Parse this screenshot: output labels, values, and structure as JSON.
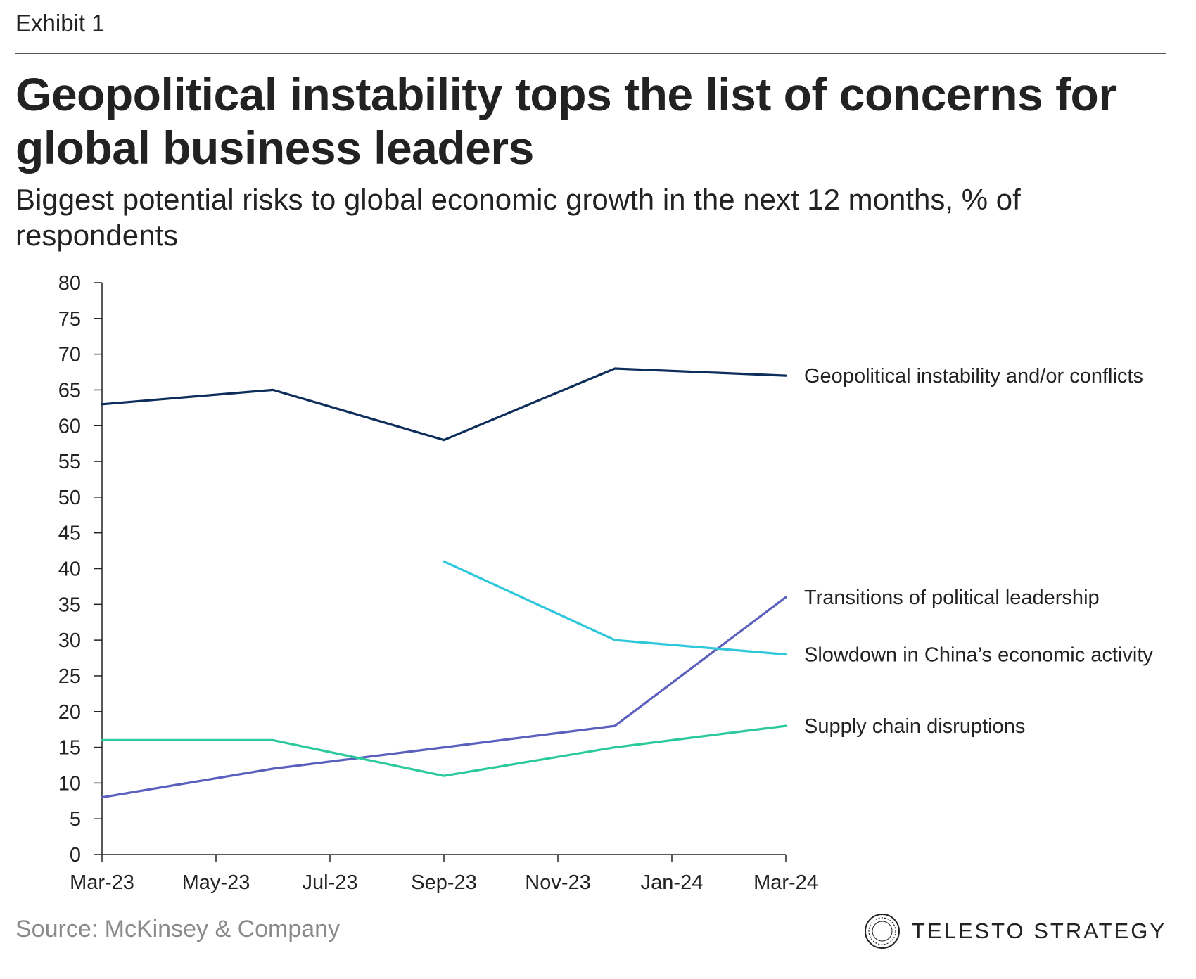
{
  "header": {
    "exhibit": "Exhibit 1",
    "title": "Geopolitical instability tops the list of concerns for global business leaders",
    "subtitle": "Biggest potential risks to global economic growth in the next 12 months, % of respondents"
  },
  "footer": {
    "source": "Source: McKinsey & Company",
    "brand": "TELESTO STRATEGY",
    "brand_logo_icon": "circular-seal-icon"
  },
  "chart_data": {
    "type": "line",
    "title": "Geopolitical instability tops the list of concerns for global business leaders",
    "subtitle": "Biggest potential risks to global economic growth in the next 12 months, % of respondents",
    "xlabel": "",
    "ylabel": "",
    "x_ticks": [
      "Mar-23",
      "May-23",
      "Jul-23",
      "Sep-23",
      "Nov-23",
      "Jan-24",
      "Mar-24"
    ],
    "y_ticks": [
      0,
      5,
      10,
      15,
      20,
      25,
      30,
      35,
      40,
      45,
      50,
      55,
      60,
      65,
      70,
      75,
      80
    ],
    "ylim": [
      0,
      80
    ],
    "xlim": [
      "2023-03",
      "2024-03"
    ],
    "grid": false,
    "legend": "direct labels at right end of lines",
    "series": [
      {
        "name": "Geopolitical instability and/or conflicts",
        "color": "#0d2d5a",
        "points": [
          {
            "x": "2023-03",
            "y": 63
          },
          {
            "x": "2023-06",
            "y": 65
          },
          {
            "x": "2023-09",
            "y": 58
          },
          {
            "x": "2023-12",
            "y": 68
          },
          {
            "x": "2024-03",
            "y": 67
          }
        ]
      },
      {
        "name": "Transitions of political leadership",
        "color": "#5b5fbd",
        "points": [
          {
            "x": "2023-03",
            "y": 8
          },
          {
            "x": "2023-06",
            "y": 12
          },
          {
            "x": "2023-09",
            "y": 15
          },
          {
            "x": "2023-12",
            "y": 18
          },
          {
            "x": "2024-03",
            "y": 36
          }
        ]
      },
      {
        "name": "Slowdown in China’s economic activity",
        "color": "#2fc7da",
        "points": [
          {
            "x": "2023-09",
            "y": 41
          },
          {
            "x": "2023-12",
            "y": 30
          },
          {
            "x": "2024-03",
            "y": 28
          }
        ]
      },
      {
        "name": "Supply chain disruptions",
        "color": "#2cc99c",
        "points": [
          {
            "x": "2023-03",
            "y": 16
          },
          {
            "x": "2023-06",
            "y": 16
          },
          {
            "x": "2023-09",
            "y": 11
          },
          {
            "x": "2023-12",
            "y": 15
          },
          {
            "x": "2024-03",
            "y": 18
          }
        ]
      }
    ]
  }
}
